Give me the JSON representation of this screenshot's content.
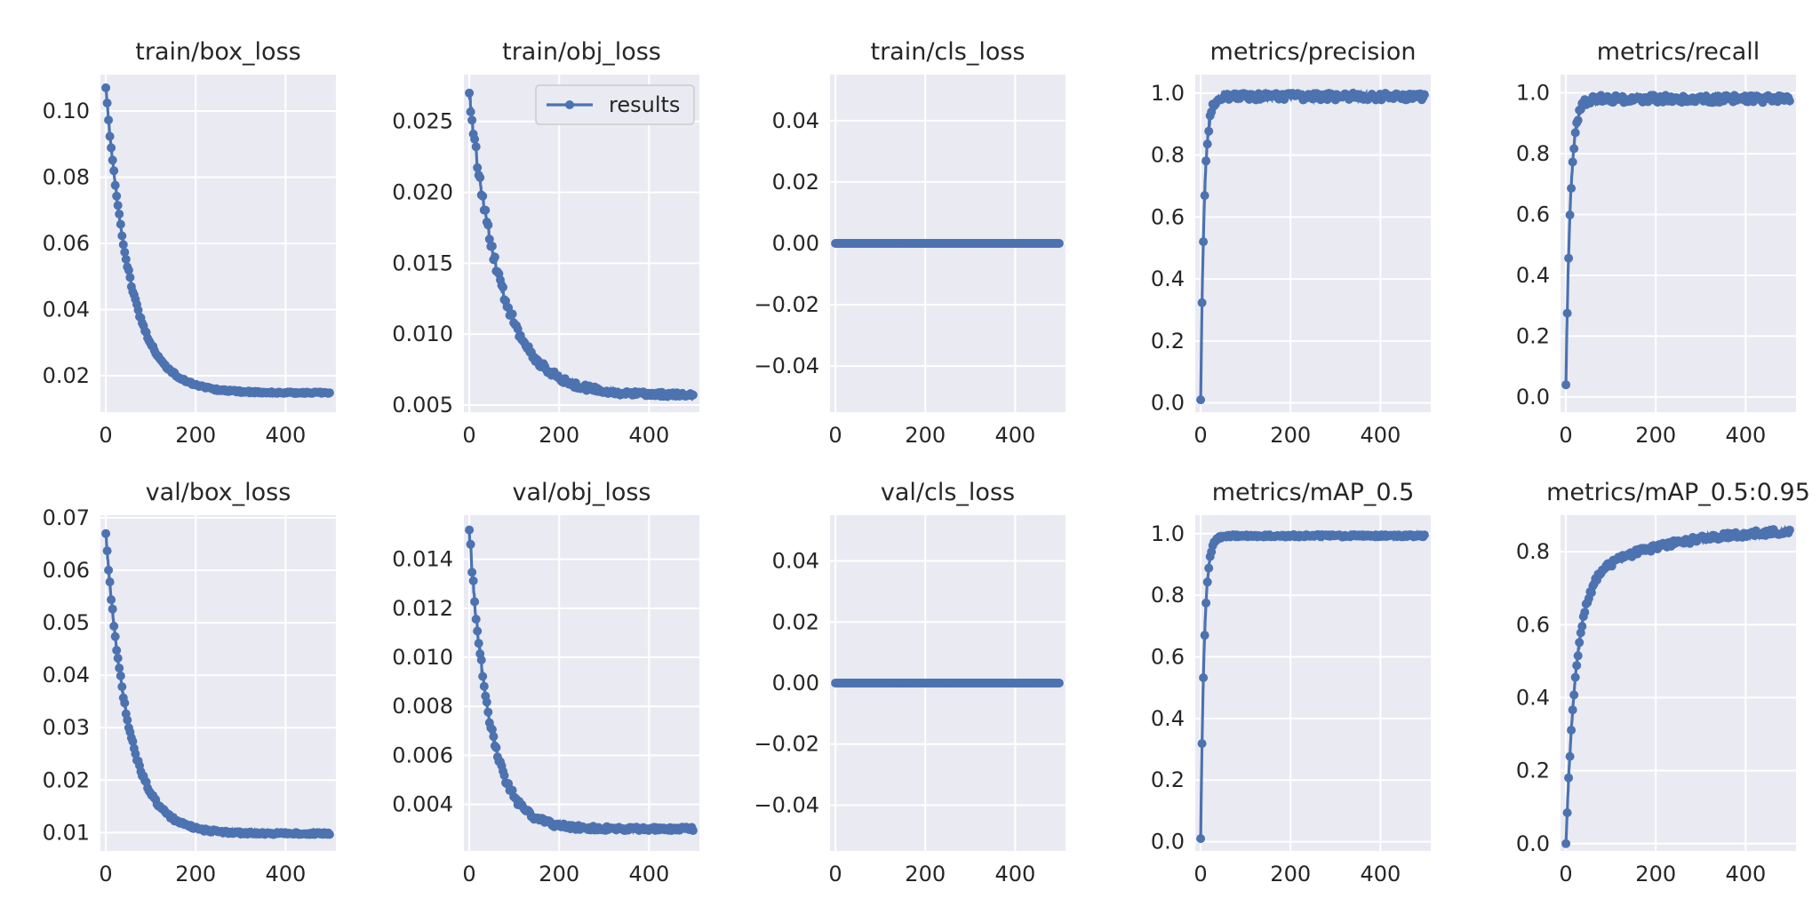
{
  "colors": {
    "series": "#4c72b0",
    "axes_bg": "#eaeaf2",
    "grid": "#ffffff",
    "text": "#262626",
    "legend_bg": "#eaeaf2",
    "legend_border": "#cccccc"
  },
  "chart_data": [
    {
      "type": "line",
      "title": "train/box_loss",
      "xlim": [
        -12,
        512
      ],
      "ylim": [
        0.009,
        0.111
      ],
      "xticks": [
        0,
        200,
        400
      ],
      "xtick_labels": [
        "0",
        "200",
        "400"
      ],
      "yticks": [
        0.02,
        0.04,
        0.06,
        0.08,
        0.1
      ],
      "ytick_labels": [
        "0.02",
        "0.04",
        "0.06",
        "0.08",
        "0.10"
      ],
      "series": [
        {
          "name": "results",
          "curve": {
            "kind": "decay",
            "start": 0.107,
            "end": 0.0148,
            "tau": 55,
            "noise": 0.0006
          }
        }
      ]
    },
    {
      "type": "line",
      "title": "train/obj_loss",
      "xlim": [
        -12,
        512
      ],
      "ylim": [
        0.0045,
        0.0283
      ],
      "xticks": [
        0,
        200,
        400
      ],
      "xtick_labels": [
        "0",
        "200",
        "400"
      ],
      "yticks": [
        0.005,
        0.01,
        0.015,
        0.02,
        0.025
      ],
      "ytick_labels": [
        "0.005",
        "0.010",
        "0.015",
        "0.020",
        "0.025"
      ],
      "legend": {
        "label": "results",
        "position": "upper right"
      },
      "series": [
        {
          "name": "results",
          "curve": {
            "kind": "decay",
            "start": 0.027,
            "end": 0.0057,
            "tau": 70,
            "noise": 0.00035
          }
        }
      ]
    },
    {
      "type": "line",
      "title": "train/cls_loss",
      "xlim": [
        -12,
        512
      ],
      "ylim": [
        -0.055,
        0.055
      ],
      "xticks": [
        0,
        200,
        400
      ],
      "xtick_labels": [
        "0",
        "200",
        "400"
      ],
      "yticks": [
        -0.04,
        -0.02,
        0.0,
        0.02,
        0.04
      ],
      "ytick_labels": [
        "−0.04",
        "−0.02",
        "0.00",
        "0.02",
        "0.04"
      ],
      "series": [
        {
          "name": "results",
          "curve": {
            "kind": "const",
            "value": 0
          }
        }
      ]
    },
    {
      "type": "line",
      "title": "metrics/precision",
      "xlim": [
        -12,
        512
      ],
      "ylim": [
        -0.03,
        1.06
      ],
      "xticks": [
        0,
        200,
        400
      ],
      "xtick_labels": [
        "0",
        "200",
        "400"
      ],
      "yticks": [
        0.0,
        0.2,
        0.4,
        0.6,
        0.8,
        1.0
      ],
      "ytick_labels": [
        "0.0",
        "0.2",
        "0.4",
        "0.6",
        "0.8",
        "1.0"
      ],
      "series": [
        {
          "name": "results",
          "curve": {
            "kind": "rise",
            "start": 0.01,
            "end": 0.99,
            "tau": 8,
            "noise": 0.012
          }
        }
      ]
    },
    {
      "type": "line",
      "title": "metrics/recall",
      "xlim": [
        -12,
        512
      ],
      "ylim": [
        -0.05,
        1.06
      ],
      "xticks": [
        0,
        200,
        400
      ],
      "xtick_labels": [
        "0",
        "200",
        "400"
      ],
      "yticks": [
        0.0,
        0.2,
        0.4,
        0.6,
        0.8,
        1.0
      ],
      "ytick_labels": [
        "0.0",
        "0.2",
        "0.4",
        "0.6",
        "0.8",
        "1.0"
      ],
      "series": [
        {
          "name": "results",
          "curve": {
            "kind": "rise",
            "start": 0.04,
            "end": 0.98,
            "tau": 10,
            "noise": 0.012
          }
        }
      ]
    },
    {
      "type": "line",
      "title": "val/box_loss",
      "xlim": [
        -12,
        512
      ],
      "ylim": [
        0.0065,
        0.0705
      ],
      "xticks": [
        0,
        200,
        400
      ],
      "xtick_labels": [
        "0",
        "200",
        "400"
      ],
      "yticks": [
        0.01,
        0.02,
        0.03,
        0.04,
        0.05,
        0.06,
        0.07
      ],
      "ytick_labels": [
        "0.01",
        "0.02",
        "0.03",
        "0.04",
        "0.05",
        "0.06",
        "0.07"
      ],
      "series": [
        {
          "name": "results",
          "curve": {
            "kind": "decay",
            "start": 0.067,
            "end": 0.0098,
            "tau": 50,
            "noise": 0.0005
          }
        }
      ]
    },
    {
      "type": "line",
      "title": "val/obj_loss",
      "xlim": [
        -12,
        512
      ],
      "ylim": [
        0.0021,
        0.0158
      ],
      "xticks": [
        0,
        200,
        400
      ],
      "xtick_labels": [
        "0",
        "200",
        "400"
      ],
      "yticks": [
        0.004,
        0.006,
        0.008,
        0.01,
        0.012,
        0.014
      ],
      "ytick_labels": [
        "0.004",
        "0.006",
        "0.008",
        "0.010",
        "0.012",
        "0.014"
      ],
      "series": [
        {
          "name": "results",
          "curve": {
            "kind": "decay",
            "start": 0.0152,
            "end": 0.003,
            "tau": 45,
            "noise": 0.00018
          }
        }
      ]
    },
    {
      "type": "line",
      "title": "val/cls_loss",
      "xlim": [
        -12,
        512
      ],
      "ylim": [
        -0.055,
        0.055
      ],
      "xticks": [
        0,
        200,
        400
      ],
      "xtick_labels": [
        "0",
        "200",
        "400"
      ],
      "yticks": [
        -0.04,
        -0.02,
        0.0,
        0.02,
        0.04
      ],
      "ytick_labels": [
        "−0.04",
        "−0.02",
        "0.00",
        "0.02",
        "0.04"
      ],
      "series": [
        {
          "name": "results",
          "curve": {
            "kind": "const",
            "value": 0
          }
        }
      ]
    },
    {
      "type": "line",
      "title": "metrics/mAP_0.5",
      "xlim": [
        -12,
        512
      ],
      "ylim": [
        -0.03,
        1.06
      ],
      "xticks": [
        0,
        200,
        400
      ],
      "xtick_labels": [
        "0",
        "200",
        "400"
      ],
      "yticks": [
        0.0,
        0.2,
        0.4,
        0.6,
        0.8,
        1.0
      ],
      "ytick_labels": [
        "0.0",
        "0.2",
        "0.4",
        "0.6",
        "0.8",
        "1.0"
      ],
      "series": [
        {
          "name": "results",
          "curve": {
            "kind": "rise",
            "start": 0.01,
            "end": 0.993,
            "tau": 8,
            "noise": 0.004
          }
        }
      ]
    },
    {
      "type": "line",
      "title": "metrics/mAP_0.5:0.95",
      "xlim": [
        -12,
        512
      ],
      "ylim": [
        -0.02,
        0.9
      ],
      "xticks": [
        0,
        200,
        400
      ],
      "xtick_labels": [
        "0",
        "200",
        "400"
      ],
      "yticks": [
        0.0,
        0.2,
        0.4,
        0.6,
        0.8
      ],
      "ytick_labels": [
        "0.0",
        "0.2",
        "0.4",
        "0.6",
        "0.8"
      ],
      "series": [
        {
          "name": "results",
          "curve": {
            "kind": "rise2",
            "start": 0.0,
            "end": 0.865,
            "tau": 22,
            "tail": 0.16,
            "tau2": 180,
            "noise": 0.008
          }
        }
      ]
    }
  ]
}
